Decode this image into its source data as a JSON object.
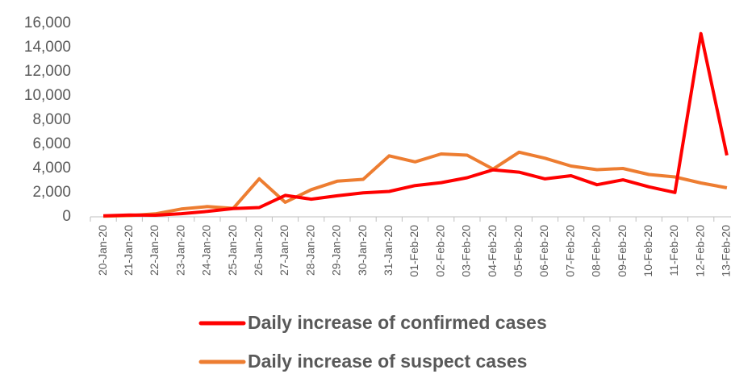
{
  "chart_data": {
    "type": "line",
    "categories": [
      "20-Jan-20",
      "21-Jan-20",
      "22-Jan-20",
      "23-Jan-20",
      "24-Jan-20",
      "25-Jan-20",
      "26-Jan-20",
      "27-Jan-20",
      "28-Jan-20",
      "29-Jan-20",
      "30-Jan-20",
      "31-Jan-20",
      "01-Feb-20",
      "02-Feb-20",
      "03-Feb-20",
      "04-Feb-20",
      "05-Feb-20",
      "06-Feb-20",
      "07-Feb-20",
      "08-Feb-20",
      "09-Feb-20",
      "10-Feb-20",
      "11-Feb-20",
      "12-Feb-20",
      "13-Feb-20"
    ],
    "series": [
      {
        "name": "Daily increase of confirmed cases",
        "color": "#ff0000",
        "values": [
          77,
          149,
          131,
          259,
          444,
          688,
          769,
          1771,
          1459,
          1737,
          1982,
          2102,
          2590,
          2829,
          3235,
          3887,
          3694,
          3143,
          3399,
          2656,
          3062,
          2478,
          2015,
          15152,
          5090
        ]
      },
      {
        "name": "Daily increase of suspect cases",
        "color": "#ed7d31",
        "values": [
          50,
          100,
          250,
          650,
          850,
          700,
          3150,
          1200,
          2250,
          2950,
          3100,
          5050,
          4550,
          5200,
          5100,
          3950,
          5350,
          4850,
          4200,
          3900,
          4000,
          3500,
          3300,
          2800,
          2400
        ]
      }
    ],
    "ylim": [
      0,
      16000
    ],
    "yticks": [
      0,
      {
        "value": 2000,
        "label": "2,000"
      },
      {
        "value": 4000,
        "label": "4,000"
      },
      {
        "value": 6000,
        "label": "6,000"
      },
      {
        "value": 8000,
        "label": "8,000"
      },
      {
        "value": 10000,
        "label": "10,000"
      },
      {
        "value": 12000,
        "label": "12,000"
      },
      {
        "value": 14000,
        "label": "14,000"
      },
      {
        "value": 16000,
        "label": "16,000"
      }
    ],
    "grid": false
  }
}
